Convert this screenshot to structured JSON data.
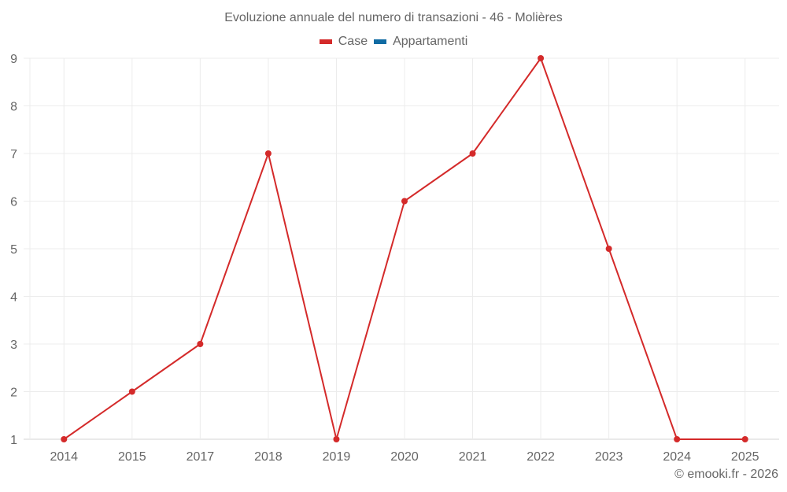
{
  "chart": {
    "title": "Evoluzione annuale del numero di transazioni - 46 - Molières",
    "credit": "© emooki.fr - 2026",
    "legend": [
      {
        "label": "Case",
        "color": "#d42a2a"
      },
      {
        "label": "Appartamenti",
        "color": "#106ba3"
      }
    ]
  },
  "chart_data": {
    "type": "line",
    "title": "Evoluzione annuale del numero di transazioni - 46 - Molières",
    "xlabel": "",
    "ylabel": "",
    "categories": [
      "2014",
      "2015",
      "2017",
      "2018",
      "2019",
      "2020",
      "2021",
      "2022",
      "2023",
      "2024",
      "2025"
    ],
    "series": [
      {
        "name": "Case",
        "color": "#d42a2a",
        "values": [
          1,
          2,
          3,
          7,
          1,
          6,
          7,
          9,
          5,
          1,
          1
        ]
      },
      {
        "name": "Appartamenti",
        "color": "#106ba3",
        "values": []
      }
    ],
    "ylim": [
      1,
      9
    ],
    "yticks": [
      1,
      2,
      3,
      4,
      5,
      6,
      7,
      8,
      9
    ],
    "grid": true,
    "legend_position": "top"
  }
}
